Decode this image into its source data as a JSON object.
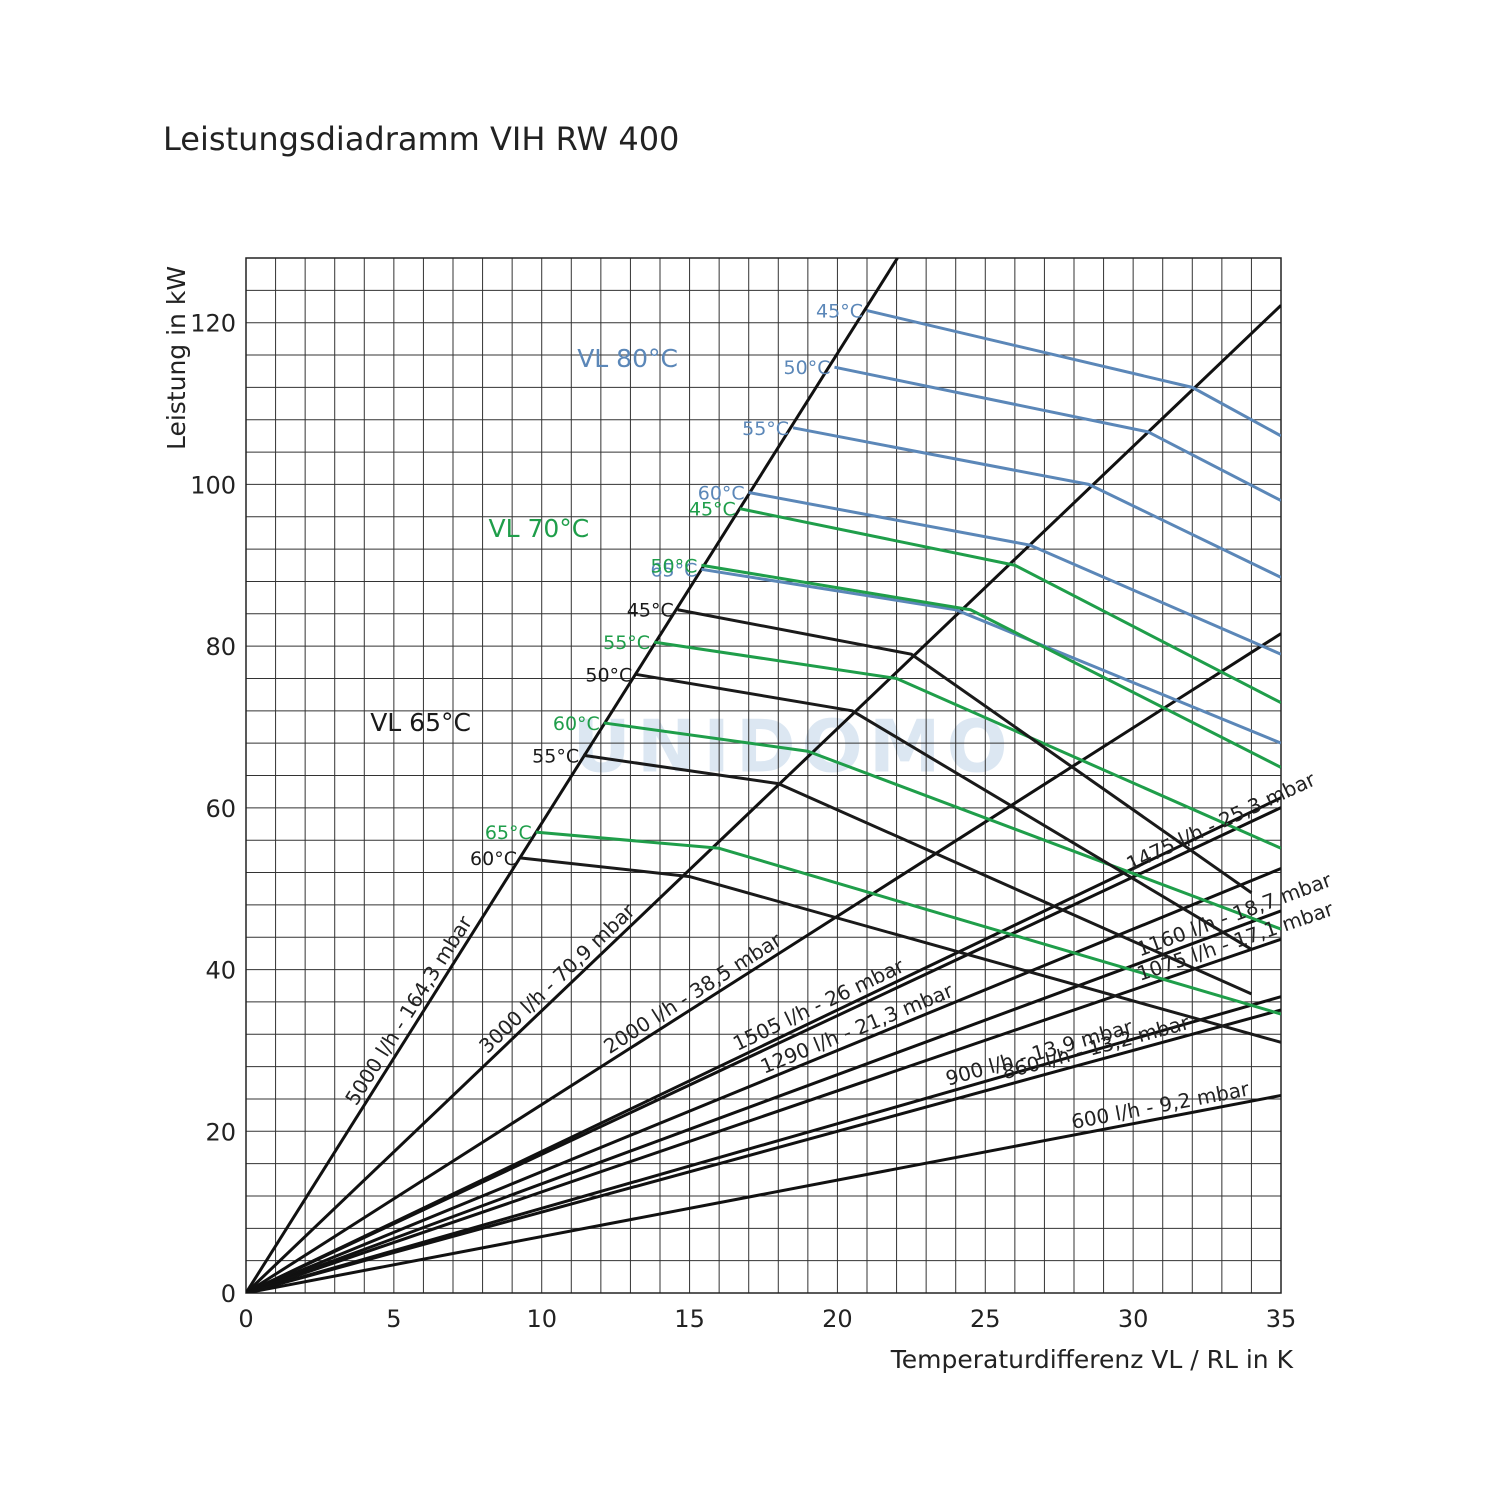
{
  "chart_data": {
    "type": "line",
    "title": "Leistungsdiadramm VIH RW 400",
    "xlabel": "Temperaturdifferenz VL / RL in K",
    "ylabel": "Leistung in kW",
    "xlim": [
      0,
      35
    ],
    "ylim": [
      0,
      128
    ],
    "x_ticks": [
      "0",
      "5",
      "10",
      "15",
      "20",
      "25",
      "30",
      "35"
    ],
    "y_ticks": [
      "0",
      "20",
      "40",
      "60",
      "80",
      "100",
      "120"
    ],
    "grid": true,
    "colors": {
      "vl80": "#5b87b8",
      "vl70": "#1f9e4a",
      "vl65": "#1a1a1a",
      "grid": "#333333",
      "watermark": "#d4e2f0"
    },
    "watermark": "UNIDOMO",
    "flow_lines": [
      {
        "label": "5000 l/h - 164,3 mbar",
        "slope": 5.81
      },
      {
        "label": "3000 l/h - 70,9 mbar",
        "slope": 3.49
      },
      {
        "label": "2000 l/h - 38,5 mbar",
        "slope": 2.33
      },
      {
        "label": "1505 l/h - 26 mbar",
        "slope": 1.75
      },
      {
        "label": "1475 l/h - 25,3 mbar",
        "slope": 1.715
      },
      {
        "label": "1290 l/h - 21,3 mbar",
        "slope": 1.5
      },
      {
        "label": "1160 l/h - 18,7 mbar",
        "slope": 1.35
      },
      {
        "label": "1075 l/h - 17,1 mbar",
        "slope": 1.25
      },
      {
        "label": "900 l/h - 13,9 mbar",
        "slope": 1.047
      },
      {
        "label": "860 l/h - 13,2 mbar",
        "slope": 1.0
      },
      {
        "label": "600 l/h - 9,2 mbar",
        "slope": 0.698
      }
    ],
    "series": [
      {
        "group": "VL 80°C",
        "name": "45°C",
        "points": [
          [
            21.0,
            121.5
          ],
          [
            32.0,
            112.0
          ],
          [
            35.0,
            106.0
          ]
        ]
      },
      {
        "group": "VL 80°C",
        "name": "50°C",
        "points": [
          [
            19.9,
            114.5
          ],
          [
            30.5,
            106.5
          ],
          [
            35.0,
            98.0
          ]
        ]
      },
      {
        "group": "VL 80°C",
        "name": "55°C",
        "points": [
          [
            18.5,
            107.0
          ],
          [
            28.5,
            100.0
          ],
          [
            35.0,
            88.5
          ]
        ]
      },
      {
        "group": "VL 80°C",
        "name": "60°C",
        "points": [
          [
            17.0,
            99.0
          ],
          [
            26.5,
            92.5
          ],
          [
            35.0,
            79.0
          ]
        ]
      },
      {
        "group": "VL 80°C",
        "name": "65°C",
        "points": [
          [
            15.4,
            89.5
          ],
          [
            24.0,
            84.5
          ],
          [
            35.0,
            68.0
          ]
        ]
      },
      {
        "group": "VL 70°C",
        "name": "45°C",
        "points": [
          [
            16.7,
            97.0
          ],
          [
            26.0,
            90.0
          ],
          [
            35.0,
            73.0
          ]
        ]
      },
      {
        "group": "VL 70°C",
        "name": "50°C",
        "points": [
          [
            15.4,
            90.0
          ],
          [
            24.5,
            84.5
          ],
          [
            35.0,
            65.0
          ]
        ]
      },
      {
        "group": "VL 70°C",
        "name": "55°C",
        "points": [
          [
            13.8,
            80.5
          ],
          [
            22.0,
            76.0
          ],
          [
            35.0,
            55.0
          ]
        ]
      },
      {
        "group": "VL 70°C",
        "name": "60°C",
        "points": [
          [
            12.1,
            70.5
          ],
          [
            19.0,
            67.0
          ],
          [
            35.0,
            45.0
          ]
        ]
      },
      {
        "group": "VL 70°C",
        "name": "65°C",
        "points": [
          [
            9.8,
            57.0
          ],
          [
            16.0,
            55.0
          ],
          [
            35.0,
            34.5
          ]
        ]
      },
      {
        "group": "VL 65°C",
        "name": "45°C",
        "points": [
          [
            14.6,
            84.5
          ],
          [
            22.5,
            79.0
          ],
          [
            34.0,
            49.5
          ]
        ]
      },
      {
        "group": "VL 65°C",
        "name": "50°C",
        "points": [
          [
            13.2,
            76.5
          ],
          [
            20.5,
            72.0
          ],
          [
            34.0,
            42.5
          ]
        ]
      },
      {
        "group": "VL 65°C",
        "name": "55°C",
        "points": [
          [
            11.4,
            66.5
          ],
          [
            18.0,
            63.0
          ],
          [
            34.0,
            37.0
          ]
        ]
      },
      {
        "group": "VL 65°C",
        "name": "60°C",
        "points": [
          [
            9.3,
            53.8
          ],
          [
            15.0,
            51.5
          ],
          [
            35.0,
            31.0
          ]
        ]
      }
    ],
    "group_labels": [
      "VL 80°C",
      "VL 70°C",
      "VL 65°C"
    ]
  }
}
